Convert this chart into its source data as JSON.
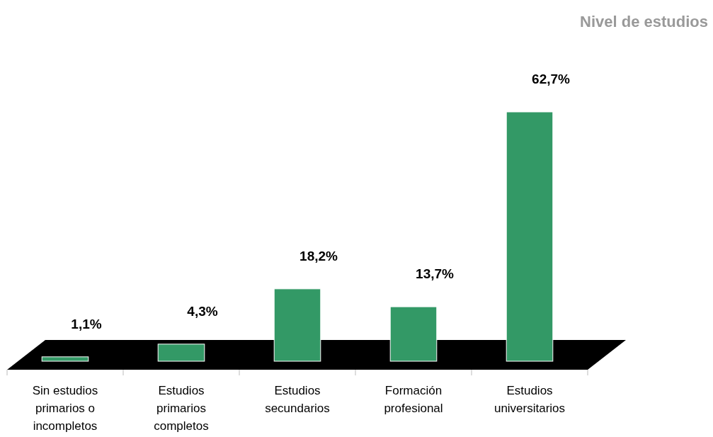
{
  "chart_data": {
    "type": "bar",
    "title": "Nivel de estudios",
    "categories": [
      "Sin estudios primarios o incompletos",
      "Estudios primarios completos",
      "Estudios secundarios",
      "Formación profesional",
      "Estudios universitarios"
    ],
    "values": [
      1.1,
      4.3,
      18.2,
      13.7,
      62.7
    ],
    "value_labels": [
      "1,1%",
      "4,3%",
      "18,2%",
      "13,7%",
      "62,7%"
    ],
    "color": "#339966"
  }
}
